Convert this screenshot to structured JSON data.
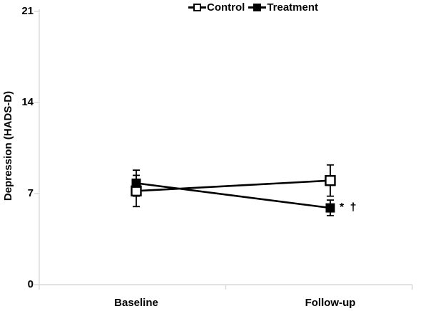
{
  "figure": {
    "background": "#ffffff",
    "axis_color": "#d9d9d9",
    "data_color": "#000000"
  },
  "legend": {
    "items": [
      {
        "label": "Control",
        "marker": "open-square"
      },
      {
        "label": "Treatment",
        "marker": "filled-square"
      }
    ]
  },
  "y_axis": {
    "label": "Depression (HADS-D)",
    "ticks": [
      "21",
      "14",
      "7",
      "0"
    ]
  },
  "x_axis": {
    "categories": [
      "Baseline",
      "Follow-up"
    ]
  },
  "annotation": {
    "text": "* †"
  },
  "chart_data": {
    "type": "line",
    "categories": [
      "Baseline",
      "Follow-up"
    ],
    "series": [
      {
        "name": "Control",
        "marker": "open-square",
        "values": [
          7.2,
          8.0
        ],
        "errors": [
          1.2,
          1.2
        ]
      },
      {
        "name": "Treatment",
        "marker": "filled-square",
        "values": [
          7.8,
          5.9
        ],
        "errors": [
          1.0,
          0.6
        ]
      }
    ],
    "title": "",
    "xlabel": "",
    "ylabel": "Depression (HADS-D)",
    "ylim": [
      0,
      21
    ],
    "yticks": [
      21,
      14,
      7,
      0
    ],
    "grid": false,
    "legend_position": "top-center",
    "error_bars": true,
    "annotations": [
      {
        "text": "* †",
        "series": "Treatment",
        "category": "Follow-up"
      }
    ]
  }
}
